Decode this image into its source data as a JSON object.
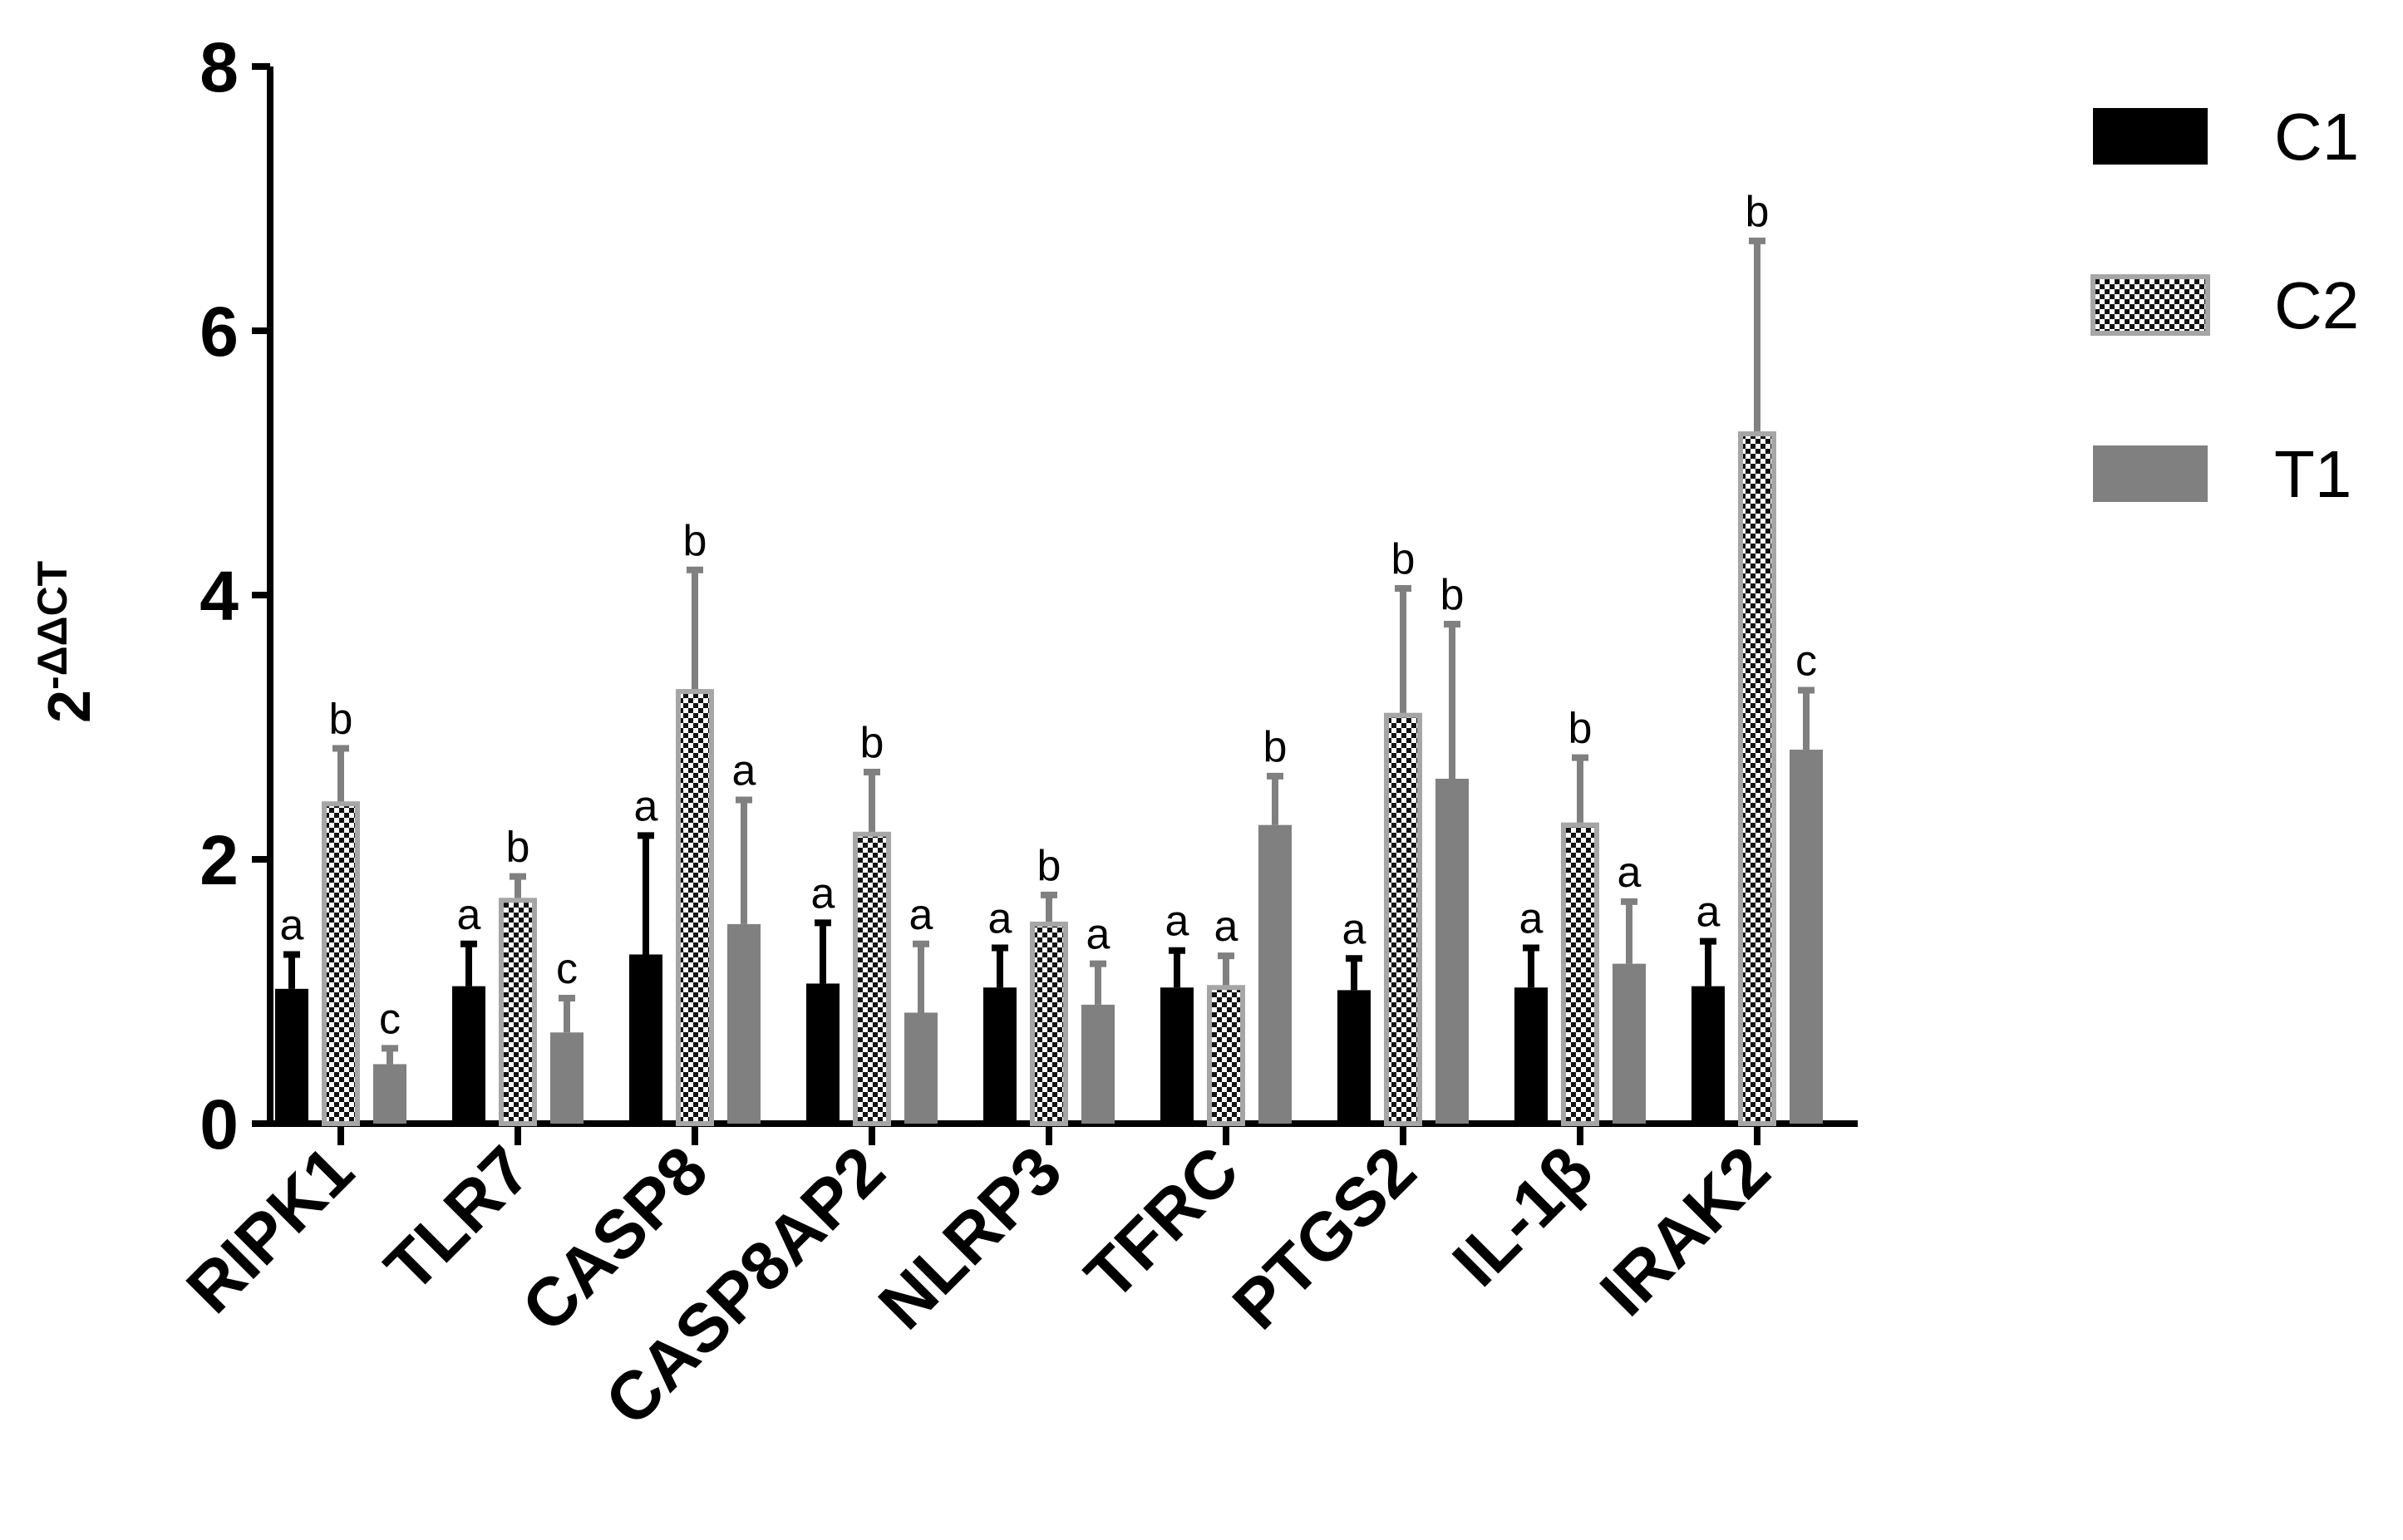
{
  "chart_data": {
    "type": "bar",
    "ylabel_base": "2",
    "ylabel_sup": "-ΔΔCT",
    "ylim": [
      0,
      8
    ],
    "yticks": [
      "0",
      "2",
      "4",
      "6",
      "8"
    ],
    "legend_position": "top-right",
    "categories": [
      "RIPK1",
      "TLR7",
      "CASP8",
      "CASP8AP2",
      "NLRP3",
      "TFRC",
      "PTGS2",
      "IL-1β",
      "IRAK2"
    ],
    "series": [
      {
        "name": "C1",
        "color": "#000000",
        "pattern": "solid",
        "values": [
          1.02,
          1.04,
          1.28,
          1.06,
          1.03,
          1.03,
          1.01,
          1.03,
          1.04
        ],
        "errors": [
          0.26,
          0.32,
          0.9,
          0.46,
          0.3,
          0.28,
          0.24,
          0.3,
          0.34
        ],
        "sig": [
          "a",
          "a",
          "a",
          "a",
          "a",
          "a",
          "a",
          "a",
          "a"
        ]
      },
      {
        "name": "C2",
        "color": "#000000",
        "pattern": "checker",
        "values": [
          2.42,
          1.69,
          3.27,
          2.19,
          1.51,
          1.03,
          3.09,
          2.26,
          5.22
        ],
        "errors": [
          0.42,
          0.18,
          0.92,
          0.47,
          0.22,
          0.24,
          0.96,
          0.51,
          1.46
        ],
        "sig": [
          "b",
          "b",
          "b",
          "b",
          "b",
          "a",
          "b",
          "b",
          "b"
        ]
      },
      {
        "name": "T1",
        "color": "#808080",
        "pattern": "solid",
        "values": [
          0.45,
          0.69,
          1.51,
          0.84,
          0.9,
          2.26,
          2.61,
          1.21,
          2.83
        ],
        "errors": [
          0.12,
          0.26,
          0.94,
          0.52,
          0.31,
          0.37,
          1.17,
          0.47,
          0.45
        ],
        "sig": [
          "c",
          "c",
          "a",
          "a",
          "a",
          "b",
          "b",
          "a",
          "c"
        ]
      }
    ]
  }
}
